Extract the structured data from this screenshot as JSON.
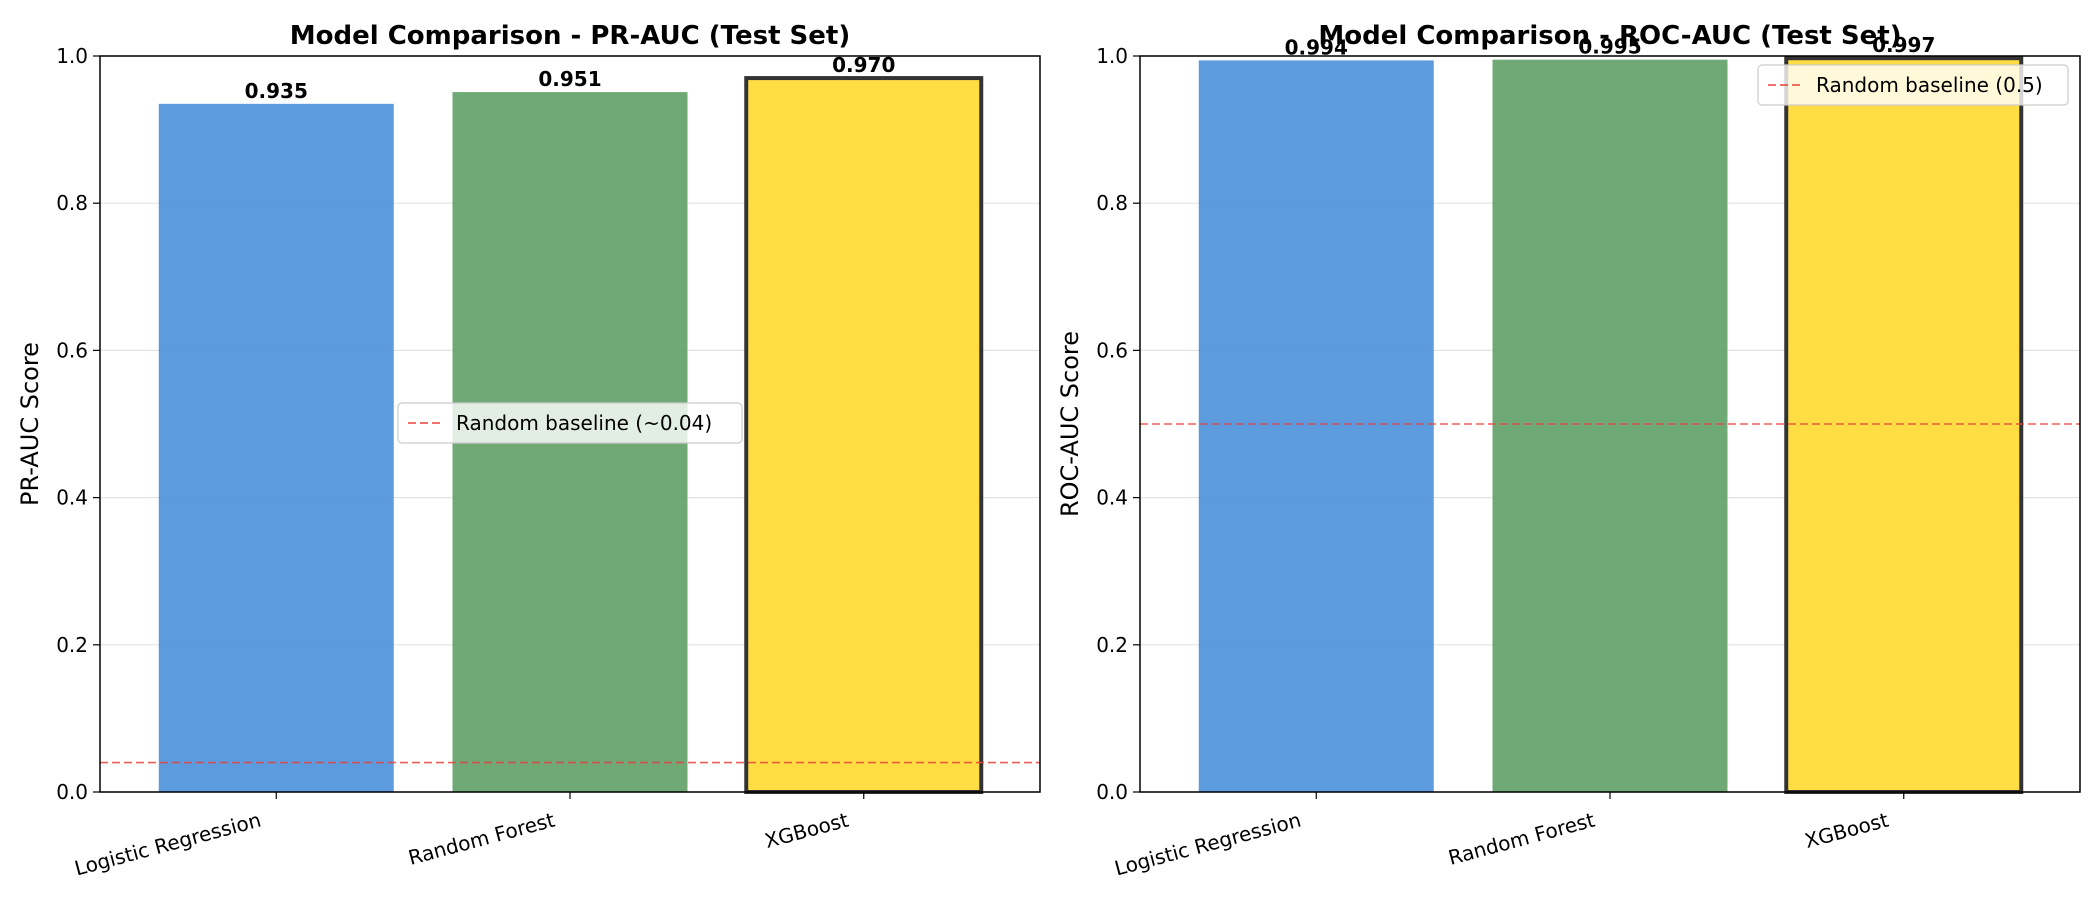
{
  "chart_data": [
    {
      "type": "bar",
      "title": "Model Comparison - PR-AUC (Test Set)",
      "xlabel": "",
      "ylabel": "PR-AUC Score",
      "ylim": [
        0,
        1.0
      ],
      "yticks": [
        "0.0",
        "0.2",
        "0.4",
        "0.6",
        "0.8",
        "1.0"
      ],
      "categories": [
        "Logistic Regression",
        "Random Forest",
        "XGBoost"
      ],
      "values": [
        0.935,
        0.951,
        0.97
      ],
      "value_labels": [
        "0.935",
        "0.951",
        "0.970"
      ],
      "colors": [
        "#4a90d9",
        "#5fa067",
        "#ffd92f"
      ],
      "highlight": "XGBoost",
      "baseline": {
        "label": "Random baseline (~0.04)",
        "value": 0.04,
        "color": "#e8423f"
      },
      "legend": "center",
      "grid": true
    },
    {
      "type": "bar",
      "title": "Model Comparison - ROC-AUC (Test Set)",
      "xlabel": "",
      "ylabel": "ROC-AUC Score",
      "ylim": [
        0,
        1.0
      ],
      "yticks": [
        "0.0",
        "0.2",
        "0.4",
        "0.6",
        "0.8",
        "1.0"
      ],
      "categories": [
        "Logistic Regression",
        "Random Forest",
        "XGBoost"
      ],
      "values": [
        0.994,
        0.995,
        0.997
      ],
      "value_labels": [
        "0.994",
        "0.995",
        "0.997"
      ],
      "colors": [
        "#4a90d9",
        "#5fa067",
        "#ffd92f"
      ],
      "highlight": "XGBoost",
      "baseline": {
        "label": "Random baseline (0.5)",
        "value": 0.5,
        "color": "#e8423f"
      },
      "legend": "top-right",
      "grid": true
    }
  ]
}
